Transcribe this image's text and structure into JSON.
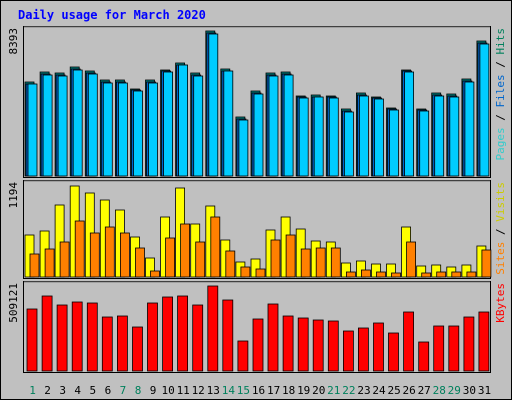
{
  "chart_data": {
    "title": "Daily usage for March 2020",
    "type": "bar",
    "days": [
      "1",
      "2",
      "3",
      "4",
      "5",
      "6",
      "7",
      "8",
      "9",
      "10",
      "11",
      "12",
      "13",
      "14",
      "15",
      "16",
      "17",
      "18",
      "19",
      "20",
      "21",
      "22",
      "23",
      "24",
      "25",
      "26",
      "27",
      "28",
      "29",
      "30",
      "31"
    ],
    "weekend_days": [
      "1",
      "7",
      "8",
      "14",
      "15",
      "21",
      "22",
      "28",
      "29"
    ],
    "panels": [
      {
        "id": "traffic",
        "max_label": "8393",
        "ymax": 8393,
        "right_labels": [
          {
            "text": "Pages",
            "color": "#33cccc"
          },
          {
            "text": "Files",
            "color": "#0066cc"
          },
          {
            "text": "Hits",
            "color": "#00805c"
          }
        ],
        "series": [
          {
            "name": "Hits",
            "color": "#008080",
            "values": [
              5450,
              6000,
              5950,
              6300,
              6050,
              5550,
              5550,
              5050,
              5550,
              6150,
              6550,
              5950,
              8393,
              6200,
              3400,
              4900,
              5950,
              6000,
              4650,
              4700,
              4650,
              3850,
              4800,
              4600,
              3950,
              6150,
              3900,
              4800,
              4750,
              5600,
              7800
            ]
          },
          {
            "name": "Files",
            "color": "#0066cc",
            "values": [
              5350,
              5900,
              5850,
              6200,
              5950,
              5450,
              5450,
              4950,
              5450,
              6050,
              6450,
              5850,
              8250,
              6100,
              3300,
              4800,
              5850,
              5900,
              4550,
              4600,
              4550,
              3750,
              4700,
              4500,
              3850,
              6050,
              3800,
              4700,
              4650,
              5500,
              7700
            ]
          },
          {
            "name": "Pages",
            "color": "#00ccff",
            "values": [
              5300,
              5850,
              5800,
              6150,
              5900,
              5400,
              5400,
              4900,
              5400,
              6000,
              6400,
              5800,
              8200,
              6050,
              3250,
              4750,
              5800,
              5850,
              4500,
              4550,
              4500,
              3700,
              4650,
              4450,
              3800,
              6000,
              3750,
              4650,
              4600,
              5450,
              7650
            ]
          }
        ]
      },
      {
        "id": "visits",
        "max_label": "1194",
        "ymax": 1194,
        "right_labels": [
          {
            "text": "Sites",
            "color": "#ff8000"
          },
          {
            "text": "Visits",
            "color": "#cccc00"
          }
        ],
        "series": [
          {
            "name": "Visits",
            "color": "#ffff00",
            "values": [
              540,
              600,
              940,
              1180,
              1090,
              1000,
              870,
              520,
              250,
              780,
              1150,
              690,
              920,
              480,
              200,
              230,
              610,
              780,
              620,
              470,
              450,
              180,
              210,
              170,
              170,
              650,
              140,
              150,
              130,
              150,
              400
            ]
          },
          {
            "name": "Sites",
            "color": "#ff8000",
            "values": [
              300,
              360,
              460,
              730,
              570,
              650,
              570,
              380,
              80,
              500,
              690,
              450,
              780,
              340,
              130,
              110,
              480,
              540,
              360,
              380,
              380,
              70,
              90,
              60,
              50,
              450,
              50,
              70,
              70,
              60,
              350
            ]
          }
        ]
      },
      {
        "id": "kbytes",
        "max_label": "509121",
        "ymax": 509121,
        "right_labels": [
          {
            "text": "KBytes",
            "color": "#ff0000"
          }
        ],
        "series": [
          {
            "name": "KBytes",
            "color": "#ff0000",
            "values": [
              374000,
              449000,
              398000,
              412000,
              405000,
              322000,
              331000,
              264000,
              408000,
              444000,
              449000,
              397000,
              509121,
              428000,
              179000,
              310000,
              401000,
              330000,
              315000,
              305000,
              302000,
              242000,
              257000,
              288000,
              225000,
              355000,
              173000,
              268000,
              268000,
              322000,
              351000
            ]
          }
        ]
      }
    ]
  }
}
